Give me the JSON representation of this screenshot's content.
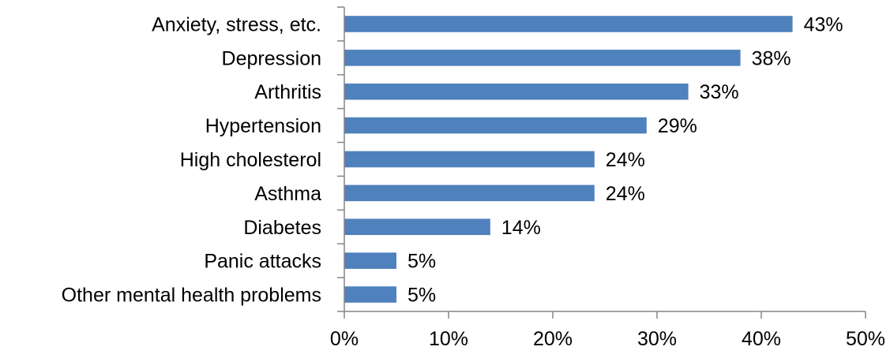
{
  "chart_data": {
    "type": "bar",
    "orientation": "horizontal",
    "categories": [
      "Anxiety, stress, etc.",
      "Depression",
      "Arthritis",
      "Hypertension",
      "High cholesterol",
      "Asthma",
      "Diabetes",
      "Panic attacks",
      "Other mental health problems"
    ],
    "values": [
      43,
      38,
      33,
      29,
      24,
      24,
      14,
      5,
      5
    ],
    "value_labels": [
      "43%",
      "38%",
      "33%",
      "29%",
      "24%",
      "24%",
      "14%",
      "5%",
      "5%"
    ],
    "xlim": [
      0,
      50
    ],
    "xticks": [
      0,
      10,
      20,
      30,
      40,
      50
    ],
    "xtick_labels": [
      "0%",
      "10%",
      "20%",
      "30%",
      "40%",
      "50%"
    ],
    "title": "",
    "xlabel": "",
    "ylabel": "",
    "grid": false,
    "legend": "none",
    "bar_color": "#4f81bd"
  }
}
